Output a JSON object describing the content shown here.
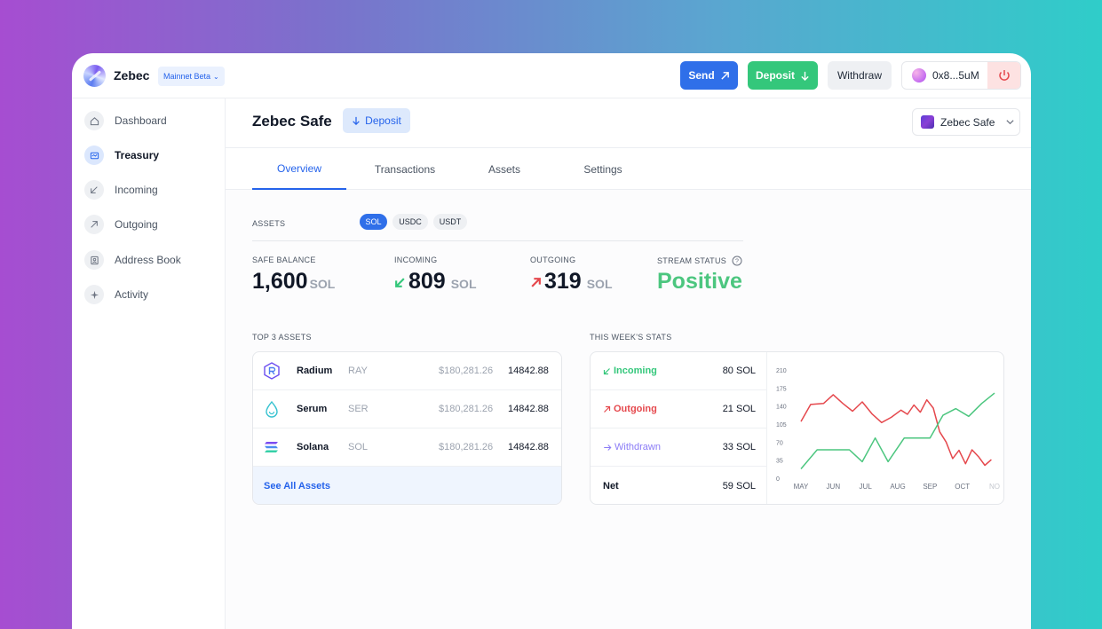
{
  "topbar": {
    "brand": "Zebec",
    "network": "Mainnet Beta",
    "send_label": "Send",
    "deposit_label": "Deposit",
    "withdraw_label": "Withdraw",
    "wallet_address": "0x8...5uM"
  },
  "sidebar": {
    "items": [
      {
        "label": "Dashboard",
        "icon": "home-icon"
      },
      {
        "label": "Treasury",
        "icon": "treasury-icon",
        "active": true
      },
      {
        "label": "Incoming",
        "icon": "arrow-down-left-icon"
      },
      {
        "label": "Outgoing",
        "icon": "arrow-up-right-icon"
      },
      {
        "label": "Address Book",
        "icon": "address-book-icon"
      },
      {
        "label": "Activity",
        "icon": "sparkle-icon"
      }
    ]
  },
  "header": {
    "title": "Zebec Safe",
    "deposit_label": "Deposit",
    "safe_select": "Zebec Safe"
  },
  "tabs": [
    {
      "label": "Overview",
      "active": true
    },
    {
      "label": "Transactions"
    },
    {
      "label": "Assets"
    },
    {
      "label": "Settings"
    }
  ],
  "assets_filter": {
    "label": "ASSETS",
    "chips": [
      "SOL",
      "USDC",
      "USDT"
    ],
    "selected": "SOL"
  },
  "stats": {
    "safe_balance": {
      "label": "SAFE BALANCE",
      "value": "1,600",
      "unit": "SOL"
    },
    "incoming": {
      "label": "INCOMING",
      "value": "809",
      "unit": "SOL"
    },
    "outgoing": {
      "label": "OUTGOING",
      "value": "319",
      "unit": "SOL"
    },
    "stream_status": {
      "label": "STREAM STATUS",
      "value": "Positive"
    }
  },
  "top_assets": {
    "label": "TOP 3 ASSETS",
    "rows": [
      {
        "name": "Radium",
        "symbol": "RAY",
        "usd": "$180,281.26",
        "amount": "14842.88"
      },
      {
        "name": "Serum",
        "symbol": "SER",
        "usd": "$180,281.26",
        "amount": "14842.88"
      },
      {
        "name": "Solana",
        "symbol": "SOL",
        "usd": "$180,281.26",
        "amount": "14842.88"
      }
    ],
    "see_all": "See All Assets"
  },
  "weekly": {
    "label": "THIS WEEK'S STATS",
    "rows": [
      {
        "label": "Incoming",
        "value": "80 SOL",
        "color": "#34c77b"
      },
      {
        "label": "Outgoing",
        "value": "21 SOL",
        "color": "#e5484d"
      },
      {
        "label": "Withdrawn",
        "value": "33 SOL",
        "color": "#8b7cf6"
      },
      {
        "label": "Net",
        "value": "59 SOL",
        "color": "#111827"
      }
    ]
  },
  "chart_data": {
    "type": "line",
    "categories": [
      "MAY",
      "JUN",
      "JUL",
      "AUG",
      "SEP",
      "OCT",
      "NO"
    ],
    "ylim": [
      0,
      210
    ],
    "yticks": [
      "210",
      "175",
      "140",
      "105",
      "70",
      "35",
      "0"
    ],
    "series": [
      {
        "color": "#e5484d",
        "x": [
          0,
          0.3,
          0.7,
          1.0,
          1.3,
          1.6,
          1.9,
          2.2,
          2.5,
          2.8,
          3.1,
          3.3,
          3.5,
          3.7,
          3.9,
          4.1,
          4.3,
          4.5,
          4.7,
          4.9,
          5.1,
          5.3,
          5.5,
          5.7,
          5.9
        ],
        "y": [
          110,
          143,
          145,
          162,
          145,
          130,
          148,
          125,
          108,
          118,
          132,
          124,
          142,
          128,
          152,
          136,
          90,
          70,
          38,
          54,
          28,
          55,
          42,
          25,
          36
        ]
      },
      {
        "color": "#4cc67f",
        "x": [
          0,
          0.5,
          1.0,
          1.5,
          1.9,
          2.3,
          2.7,
          3.2,
          3.6,
          4.0,
          4.4,
          4.8,
          5.2,
          5.6,
          6.0
        ],
        "y": [
          18,
          55,
          55,
          55,
          32,
          78,
          32,
          78,
          78,
          78,
          122,
          135,
          120,
          145,
          165
        ]
      }
    ]
  }
}
